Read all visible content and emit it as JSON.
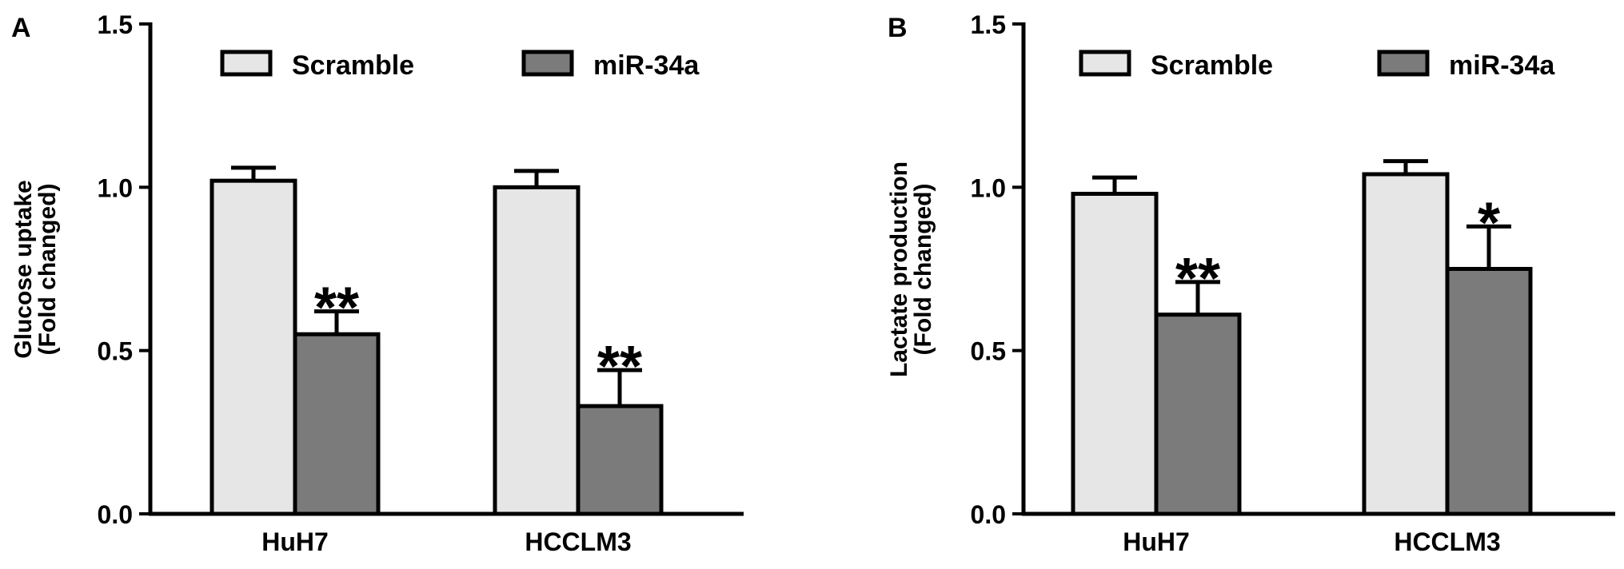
{
  "colors": {
    "scramble": "#e6e6e6",
    "mir34a": "#7b7b7b",
    "axis": "#000000"
  },
  "chart_data": [
    {
      "panel_label": "A",
      "type": "bar",
      "categories": [
        "HuH7",
        "HCCLM3"
      ],
      "ylabel_lines": [
        "Glucose uptake",
        "(Fold changed)"
      ],
      "ylim": [
        0,
        1.5
      ],
      "yticks": [
        0.0,
        0.5,
        1.0,
        1.5
      ],
      "ytick_labels": [
        "0.0",
        "0.5",
        "1.0",
        "1.5"
      ],
      "legend_position": "top",
      "series": [
        {
          "name": "Scramble",
          "values": [
            1.02,
            1.0
          ],
          "errors": [
            0.04,
            0.05
          ]
        },
        {
          "name": "miR-34a",
          "values": [
            0.55,
            0.33
          ],
          "errors": [
            0.07,
            0.11
          ]
        }
      ],
      "annotations": [
        {
          "category": "HuH7",
          "series": "miR-34a",
          "text": "**"
        },
        {
          "category": "HCCLM3",
          "series": "miR-34a",
          "text": "**"
        }
      ]
    },
    {
      "panel_label": "B",
      "type": "bar",
      "categories": [
        "HuH7",
        "HCCLM3"
      ],
      "ylabel_lines": [
        "Lactate production",
        "(Fold changed)"
      ],
      "ylim": [
        0,
        1.5
      ],
      "yticks": [
        0.0,
        0.5,
        1.0,
        1.5
      ],
      "ytick_labels": [
        "0.0",
        "0.5",
        "1.0",
        "1.5"
      ],
      "legend_position": "top",
      "series": [
        {
          "name": "Scramble",
          "values": [
            0.98,
            1.04
          ],
          "errors": [
            0.05,
            0.04
          ]
        },
        {
          "name": "miR-34a",
          "values": [
            0.61,
            0.75
          ],
          "errors": [
            0.1,
            0.13
          ]
        }
      ],
      "annotations": [
        {
          "category": "HuH7",
          "series": "miR-34a",
          "text": "**"
        },
        {
          "category": "HCCLM3",
          "series": "miR-34a",
          "text": "*"
        }
      ]
    }
  ]
}
